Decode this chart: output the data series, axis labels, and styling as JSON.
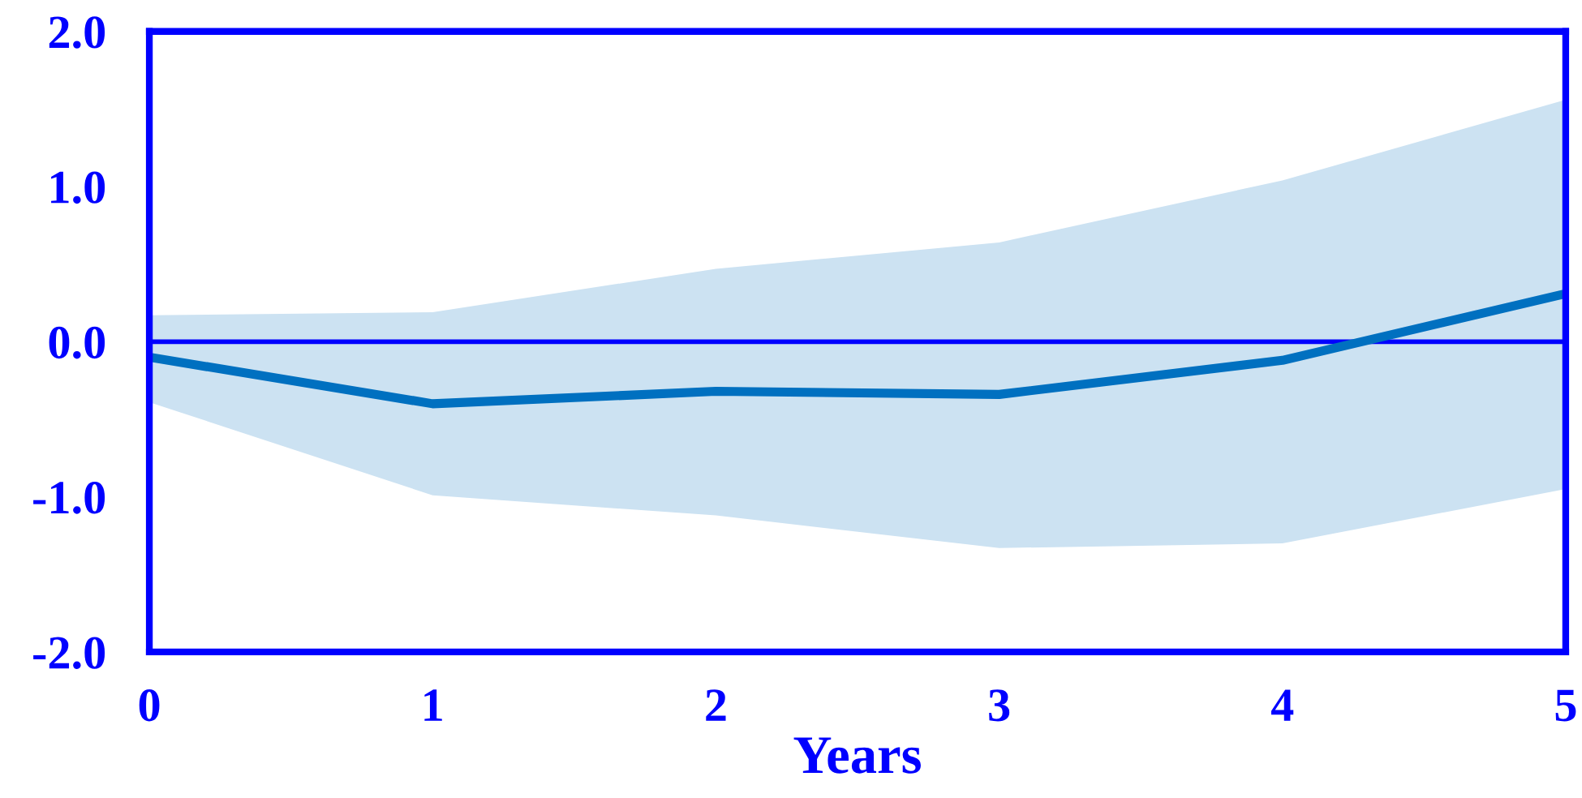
{
  "chart_data": {
    "type": "line",
    "xlabel": "Years",
    "x": [
      0,
      1,
      2,
      3,
      4,
      5
    ],
    "series": [
      {
        "color": "#0070c0",
        "values": [
          -0.1,
          -0.4,
          -0.32,
          -0.34,
          -0.12,
          0.31
        ],
        "lower": [
          -0.39,
          -0.99,
          -1.12,
          -1.33,
          -1.3,
          -0.95
        ],
        "upper": [
          0.17,
          0.19,
          0.47,
          0.64,
          1.04,
          1.56
        ]
      }
    ],
    "xlim": [
      0,
      5
    ],
    "xticks": [
      0,
      1,
      2,
      3,
      4,
      5
    ],
    "ylim": [
      -2,
      2
    ],
    "yticks": [
      {
        "value": -2,
        "label": "-2.0"
      },
      {
        "value": -1,
        "label": "-1.0"
      },
      {
        "value": 0,
        "label": "0.0"
      },
      {
        "value": 1,
        "label": "1.0"
      },
      {
        "value": 2,
        "label": "2.0"
      }
    ],
    "ref_lines": [
      {
        "axis": "y",
        "value": 0,
        "color": "#0000ff"
      }
    ]
  }
}
